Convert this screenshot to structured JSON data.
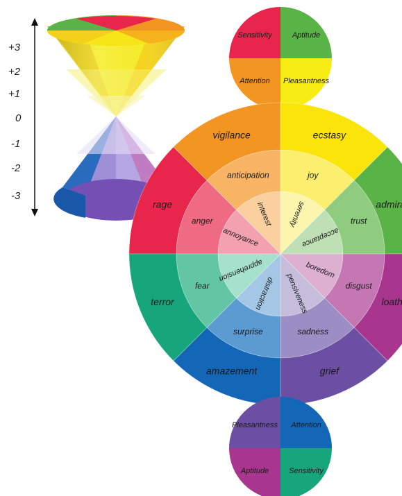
{
  "scale": {
    "ticks": [
      "+3",
      "+2",
      "+1",
      "0",
      "-1",
      "-2",
      "-3"
    ]
  },
  "top_circle": {
    "cells": [
      {
        "label": "Sensitivity",
        "color": "#e8254a"
      },
      {
        "label": "Aptitude",
        "color": "#5ab346"
      },
      {
        "label": "Attention",
        "color": "#f39522"
      },
      {
        "label": "Pleasantness",
        "color": "#f7ec14"
      }
    ]
  },
  "bottom_circle": {
    "cells": [
      {
        "label": "Pleasantness",
        "color": "#6a4fa3"
      },
      {
        "label": "Attention",
        "color": "#1466b7"
      },
      {
        "label": "Aptitude",
        "color": "#a8358e"
      },
      {
        "label": "Sensitivity",
        "color": "#17a67b"
      }
    ]
  },
  "upper_fan": {
    "outer": [
      "rage",
      "vigilance",
      "ecstasy",
      "admiration"
    ],
    "middle": [
      "anger",
      "anticipation",
      "joy",
      "trust"
    ],
    "inner": [
      "annoyance",
      "interest",
      "serenity",
      "acceptance"
    ],
    "colors": {
      "outer": [
        "#e8254a",
        "#f39522",
        "#fbe409",
        "#5ab346"
      ],
      "middle": [
        "#ee6b83",
        "#f7b464",
        "#fbef6f",
        "#8fcc7f"
      ],
      "inner": [
        "#f3a0b0",
        "#f9d09e",
        "#fcf5ae",
        "#bfe0b4"
      ]
    }
  },
  "lower_fan": {
    "outer": [
      "loathing",
      "grief",
      "amazement",
      "terror"
    ],
    "middle": [
      "disgust",
      "sadness",
      "surprise",
      "fear"
    ],
    "inner": [
      "boredom",
      "pensiveness",
      "distraction",
      "apprehension"
    ],
    "colors": {
      "outer": [
        "#a8358e",
        "#6a4fa3",
        "#1466b7",
        "#17a67b"
      ],
      "middle": [
        "#c477b2",
        "#9c8dc4",
        "#5c9bd2",
        "#62c6a5"
      ],
      "inner": [
        "#ddb0d2",
        "#c6bddd",
        "#a4c7e6",
        "#a6e1cd"
      ]
    }
  }
}
